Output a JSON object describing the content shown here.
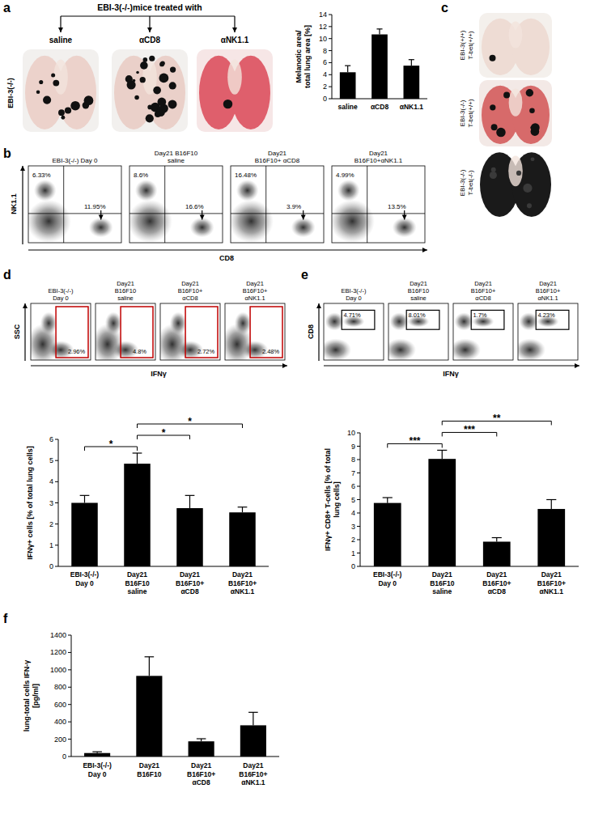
{
  "figure": {
    "panel_labels": [
      "a",
      "b",
      "c",
      "d",
      "e",
      "f"
    ],
    "a": {
      "header": "EBI-3(-/-)mice treated with",
      "row_label": "EBI-3(-/-)",
      "treatments": [
        "saline",
        "αCD8",
        "αNK1.1"
      ]
    },
    "b": {
      "y_axis": "NK1.1",
      "x_axis": "CD8",
      "plots": [
        {
          "title": "EBI-3(-/-) Day 0",
          "upper_left": "6.33%",
          "lower_right": "11.95%"
        },
        {
          "title": "Day21 B16F10\nsaline",
          "upper_left": "8.6%",
          "lower_right": "16.6%"
        },
        {
          "title": "Day21\nB16F10+ αCD8",
          "upper_left": "16.48%",
          "lower_right": "3.9%"
        },
        {
          "title": "Day21\nB16F10+αNK1.1",
          "upper_left": "4.99%",
          "lower_right": "13.5%"
        }
      ]
    },
    "c": {
      "labels": [
        "EBI-3(+/+)\nT-bet(+/+)",
        "EBI-3(-/-)\nT-bet(+/+)",
        "EBI-3(-/-)\nT-bet(-/-)"
      ]
    },
    "d": {
      "y_axis": "SSC",
      "x_axis": "IFNγ",
      "plots": [
        {
          "title": "EBI-3(-/-)\nDay 0",
          "gate": "2.96%"
        },
        {
          "title": "Day21\nB16F10\nsaline",
          "gate": "4.8%"
        },
        {
          "title": "Day21\nB16F10+\nαCD8",
          "gate": "2.72%"
        },
        {
          "title": "Day21\nB16F10+\nαNK1.1",
          "gate": "2.48%"
        }
      ]
    },
    "e": {
      "y_axis": "CD8",
      "x_axis": "IFNγ",
      "plots": [
        {
          "title": "EBI-3(-/-)\nDay 0",
          "gate": "4.71%"
        },
        {
          "title": "Day21\nB16F10\nsaline",
          "gate": "8.01%"
        },
        {
          "title": "Day21\nB16F10+\nαCD8",
          "gate": "1.7%"
        },
        {
          "title": "Day21\nB16F10+\nαNK1.1",
          "gate": "4.23%"
        }
      ]
    }
  },
  "chart_data": [
    {
      "type": "bar",
      "y_label": "Melanotic area/\ntotal lung area [%]",
      "categories": [
        "saline",
        "αCD8",
        "αNK1.1"
      ],
      "values": [
        4.4,
        10.7,
        5.5
      ],
      "errors": [
        1.1,
        0.9,
        1.0
      ],
      "color": "#000000",
      "ylim": [
        0,
        14
      ],
      "yticks": [
        0,
        2,
        4,
        6,
        8,
        10,
        12,
        14
      ]
    },
    {
      "type": "bar",
      "y_label": "IFNγ+ cells [% of total lung cells]",
      "categories": [
        "EBI-3(-/-)\nDay 0",
        "Day21\nB16F10\nsaline",
        "Day21\nB16F10+\nαCD8",
        "Day21\nB16F10+\nαNK1.1"
      ],
      "values": [
        3.0,
        4.85,
        2.75,
        2.55
      ],
      "errors": [
        0.35,
        0.5,
        0.6,
        0.25
      ],
      "color": "#000000",
      "ylim": [
        0,
        6
      ],
      "yticks": [
        0,
        1,
        2,
        3,
        4,
        5,
        6
      ],
      "annotations": [
        {
          "text": "*",
          "between": [
            "EBI-3(-/-)\nDay 0",
            "Day21\nB16F10\nsaline"
          ]
        },
        {
          "text": "*",
          "between": [
            "Day21\nB16F10\nsaline",
            "Day21\nB16F10+\nαCD8"
          ]
        },
        {
          "text": "*",
          "between": [
            "Day21\nB16F10\nsaline",
            "Day21\nB16F10+\nαNK1.1"
          ]
        }
      ]
    },
    {
      "type": "bar",
      "y_label": "IFNγ+ CD8+ T-cells [% of total\nlung cells]",
      "categories": [
        "EBI-3(-/-)\nDay 0",
        "Day21\nB16F10\nsaline",
        "Day21\nB16F10+\nαCD8",
        "Day21\nB16F10+\nαNK1.1"
      ],
      "values": [
        4.75,
        8.05,
        1.85,
        4.3
      ],
      "errors": [
        0.4,
        0.65,
        0.3,
        0.7
      ],
      "color": "#000000",
      "ylim": [
        0,
        10
      ],
      "yticks": [
        0,
        1,
        2,
        3,
        4,
        5,
        6,
        7,
        8,
        9,
        10
      ],
      "annotations": [
        {
          "text": "***",
          "between": [
            "EBI-3(-/-)\nDay 0",
            "Day21\nB16F10\nsaline"
          ]
        },
        {
          "text": "***",
          "between": [
            "Day21\nB16F10\nsaline",
            "Day21\nB16F10+\nαCD8"
          ]
        },
        {
          "text": "**",
          "between": [
            "Day21\nB16F10\nsaline",
            "Day21\nB16F10+\nαNK1.1"
          ]
        }
      ]
    },
    {
      "type": "bar",
      "y_label": "lung-total cells IFN-γ\n[pg/ml]",
      "categories": [
        "EBI-3(-/-)\nDay 0",
        "Day21\nB16F10",
        "Day21\nB16F10+\nαCD8",
        "Day21\nB16F10+\nαNK1.1"
      ],
      "values": [
        40,
        930,
        175,
        360
      ],
      "errors": [
        15,
        220,
        30,
        150
      ],
      "color": "#000000",
      "ylim": [
        0,
        1400
      ],
      "yticks": [
        0,
        200,
        400,
        600,
        800,
        1000,
        1200,
        1400
      ]
    }
  ]
}
